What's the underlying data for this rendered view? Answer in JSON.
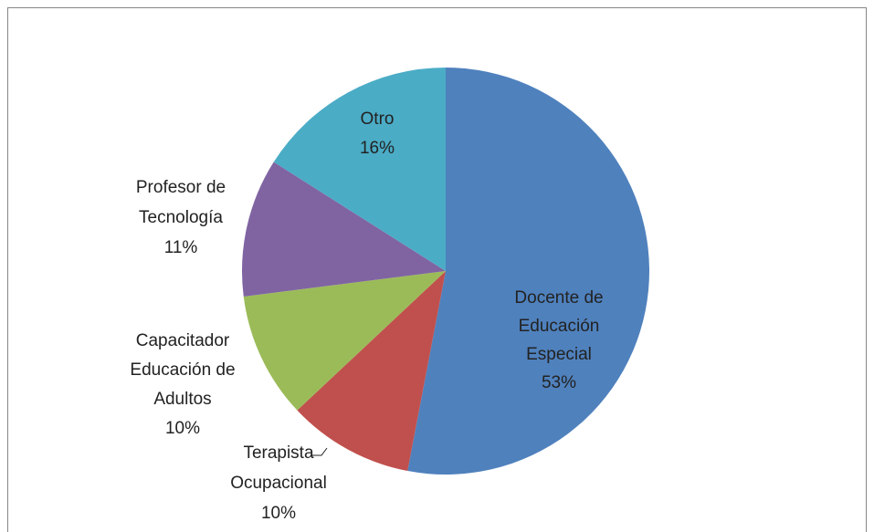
{
  "chart_data": {
    "type": "pie",
    "categories": [
      [
        "Docente de",
        "Educación",
        "Especial"
      ],
      [
        "Terapista",
        "Ocupacional"
      ],
      [
        "Capacitador",
        "Educación de",
        "Adultos"
      ],
      [
        "Profesor  de",
        "Tecnología"
      ],
      [
        "Otro"
      ]
    ],
    "values": [
      53,
      10,
      10,
      11,
      16
    ],
    "value_labels": [
      "53%",
      "10%",
      "10%",
      "11%",
      "16%"
    ],
    "colors": [
      "#4f81bd",
      "#c0504d",
      "#9bbb59",
      "#8064a2",
      "#4bacc6"
    ]
  }
}
